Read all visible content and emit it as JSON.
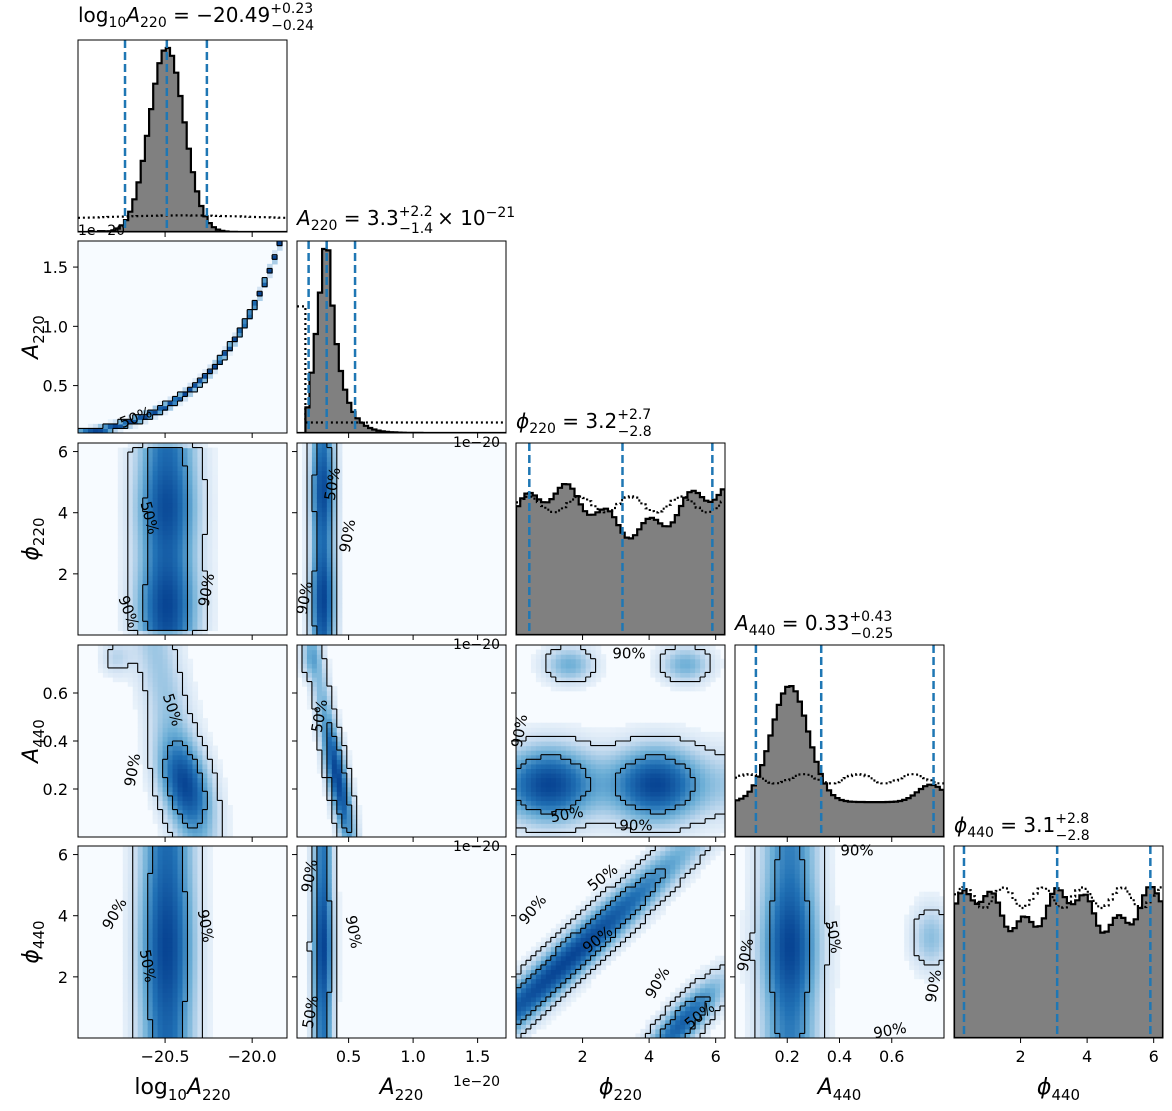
{
  "colors": {
    "hist_fill": "#808080",
    "quantile_line": "#1f77b4",
    "kde_dark": "#0b4f8f",
    "kde_light": "#f7fbff",
    "contour": "#000000"
  },
  "chart_data": {
    "type": "corner",
    "parameters": [
      {
        "key": "log10A220",
        "label": "log10A220",
        "label_prefix": "log",
        "label_prefix_sub": "10",
        "label_sym": "A",
        "label_sub": "220",
        "range": [
          -21.0,
          -19.8
        ],
        "ticks": [
          -20.5,
          -20.0
        ],
        "tick_labels": [
          "−20.5",
          "−20.0"
        ],
        "offset_text": "1e−20"
      },
      {
        "key": "A220",
        "label": "A220",
        "label_sym": "A",
        "label_sub": "220",
        "range": [
          0.1,
          1.72
        ],
        "ticks": [
          0.5,
          1.0,
          1.5
        ],
        "tick_labels": [
          "0.5",
          "1.0",
          "1.5"
        ],
        "offset_text": "1e−20"
      },
      {
        "key": "phi220",
        "label": "phi220",
        "label_sym": "ϕ",
        "label_sub": "220",
        "range": [
          0.0,
          6.28
        ],
        "ticks": [
          2,
          4,
          6
        ],
        "tick_labels": [
          "2",
          "4",
          "6"
        ]
      },
      {
        "key": "A440",
        "label": "A440",
        "label_sym": "A",
        "label_sub": "440",
        "range": [
          0.0,
          0.8
        ],
        "ticks": [
          0.2,
          0.4,
          0.6
        ],
        "tick_labels": [
          "0.2",
          "0.4",
          "0.6"
        ]
      },
      {
        "key": "phi440",
        "label": "phi440",
        "label_sym": "ϕ",
        "label_sub": "440",
        "range": [
          0.0,
          6.28
        ],
        "ticks": [
          2,
          4,
          6
        ],
        "tick_labels": [
          "2",
          "4",
          "6"
        ]
      }
    ],
    "titles": [
      {
        "pre": "log",
        "pre_sub": "10",
        "sym": "A",
        "sub": "220",
        "eq": " = −20.49",
        "up": "+0.23",
        "lo": "−0.24",
        "post": ""
      },
      {
        "pre": "",
        "pre_sub": "",
        "sym": "A",
        "sub": "220",
        "eq": " = 3.3",
        "up": "+2.2",
        "lo": "−1.4",
        "post": "× 10",
        "post_exp": "−21"
      },
      {
        "pre": "",
        "pre_sub": "",
        "sym": "ϕ",
        "sub": "220",
        "eq": " = 3.2",
        "up": "+2.7",
        "lo": "−2.8",
        "post": ""
      },
      {
        "pre": "",
        "pre_sub": "",
        "sym": "A",
        "sub": "440",
        "eq": " = 0.33",
        "up": "+0.43",
        "lo": "−0.25",
        "post": ""
      },
      {
        "pre": "",
        "pre_sub": "",
        "sym": "ϕ",
        "sub": "440",
        "eq": " = 3.1",
        "up": "+2.8",
        "lo": "−2.8",
        "post": ""
      }
    ],
    "quantiles": [
      [
        -20.73,
        -20.49,
        -20.26
      ],
      [
        0.19,
        0.33,
        0.55
      ],
      [
        0.4,
        3.2,
        5.9
      ],
      [
        0.08,
        0.33,
        0.76
      ],
      [
        0.3,
        3.1,
        5.9
      ]
    ],
    "contour_levels": [
      "50%",
      "90%"
    ]
  }
}
